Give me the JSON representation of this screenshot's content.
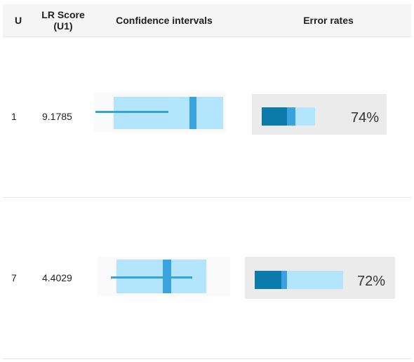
{
  "columns": {
    "u": "U",
    "score": "LR Score\n(U1)",
    "ci": "Confidence intervals",
    "err": "Error rates"
  },
  "rows": [
    {
      "u": "1",
      "score": "9.1785",
      "error_rate_label": "74%"
    },
    {
      "u": "7",
      "score": "4.4029",
      "error_rate_label": "72%"
    }
  ],
  "colors": {
    "interval_fill": "#b3e5fc",
    "interval_line": "#35a3d8",
    "point_estimate": "#3aa2dc",
    "error_dark": "#0a7bab",
    "error_mid": "#3aa2dc",
    "error_light": "#b3e5fc",
    "panel_bg": "#ebebeb",
    "header_bg": "#f5f5f5"
  }
}
